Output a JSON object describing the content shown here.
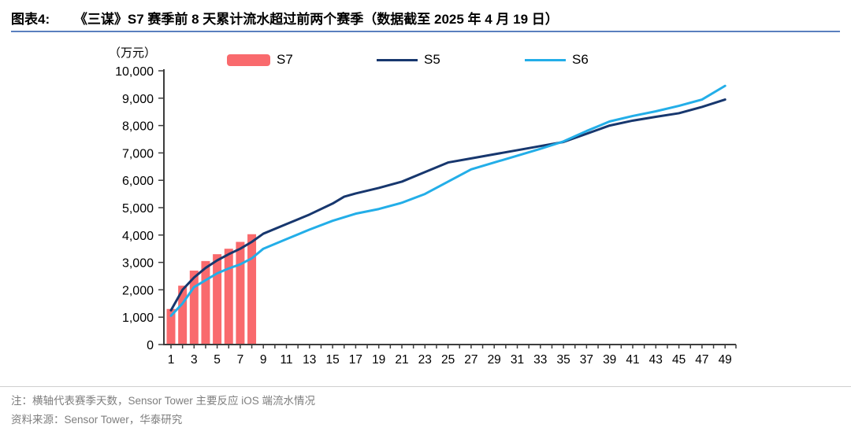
{
  "header": {
    "exhibit_label": "图表4:",
    "title": "《三谋》S7 赛季前 8 天累计流水超过前两个赛季（数据截至 2025 年 4 月 19 日）"
  },
  "footer": {
    "note": "注：横轴代表赛季天数，Sensor Tower 主要反应 iOS 端流水情况",
    "source": "资料来源：Sensor Tower，华泰研究"
  },
  "colors": {
    "title_rule_blue": "#5a7fbe",
    "axis": "#3d3d3d",
    "s7_red": "#f96a6d",
    "s5_navy": "#17376e",
    "s6_cyan": "#23aee8"
  },
  "chart_data": {
    "type": "bar+line",
    "title": "",
    "unit_label": "（万元）",
    "xlabel": "",
    "ylabel": "（万元）",
    "ylim": [
      0,
      10000
    ],
    "xlim": [
      0,
      50
    ],
    "grid": false,
    "legend_position": "top",
    "x_ticks": [
      1,
      3,
      5,
      7,
      9,
      11,
      13,
      15,
      17,
      19,
      21,
      23,
      25,
      27,
      29,
      31,
      33,
      35,
      37,
      39,
      41,
      43,
      45,
      47,
      49
    ],
    "y_ticks": [
      0,
      1000,
      2000,
      3000,
      4000,
      5000,
      6000,
      7000,
      8000,
      9000,
      10000
    ],
    "bar_series": {
      "name": "S7",
      "color": "#f96a6d",
      "x": [
        1,
        2,
        3,
        4,
        5,
        6,
        7,
        8
      ],
      "values": [
        1300,
        2150,
        2700,
        3050,
        3300,
        3500,
        3750,
        4030
      ]
    },
    "line_series": [
      {
        "name": "S5",
        "color": "#17376e",
        "x": [
          1,
          2,
          3,
          4,
          5,
          6,
          7,
          8,
          9,
          11,
          13,
          15,
          16,
          17,
          19,
          21,
          23,
          25,
          27,
          29,
          31,
          33,
          35,
          37,
          39,
          41,
          43,
          45,
          47,
          49
        ],
        "values": [
          1250,
          2000,
          2450,
          2800,
          3075,
          3300,
          3500,
          3750,
          4050,
          4400,
          4750,
          5150,
          5400,
          5520,
          5720,
          5950,
          6300,
          6650,
          6800,
          6950,
          7100,
          7250,
          7400,
          7700,
          8000,
          8180,
          8320,
          8450,
          8680,
          8950
        ]
      },
      {
        "name": "S6",
        "color": "#23aee8",
        "x": [
          1,
          2,
          3,
          4,
          5,
          6,
          7,
          8,
          9,
          11,
          13,
          15,
          17,
          19,
          21,
          23,
          25,
          27,
          29,
          31,
          33,
          35,
          37,
          39,
          41,
          43,
          45,
          47,
          49
        ],
        "values": [
          1050,
          1500,
          2100,
          2350,
          2600,
          2780,
          2930,
          3150,
          3500,
          3850,
          4200,
          4520,
          4780,
          4950,
          5180,
          5500,
          5950,
          6400,
          6650,
          6900,
          7150,
          7420,
          7800,
          8150,
          8350,
          8520,
          8720,
          8950,
          9450
        ]
      }
    ]
  }
}
